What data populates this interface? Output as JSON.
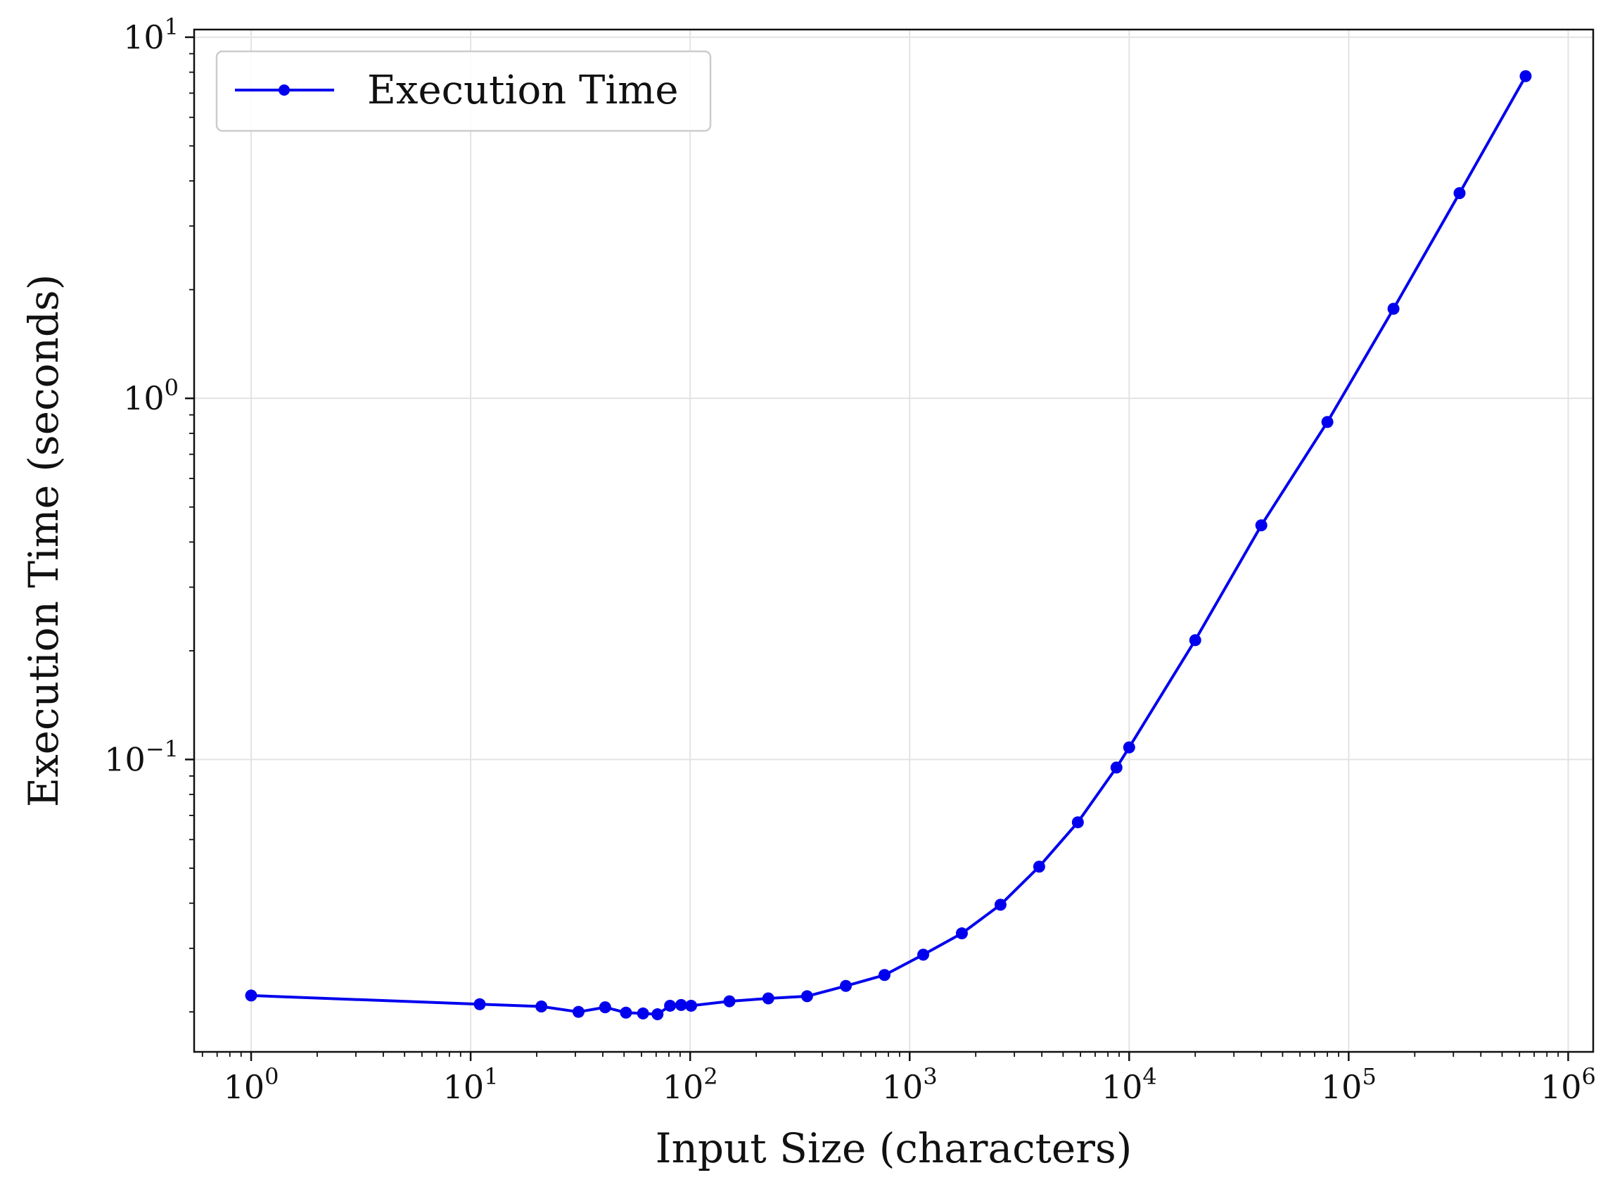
{
  "chart_data": {
    "type": "line",
    "xscale": "log",
    "yscale": "log",
    "xlabel": "Input Size (characters)",
    "ylabel": "Execution Time (seconds)",
    "xlim": [
      0.55,
      1300000
    ],
    "ylim": [
      0.0155,
      10.5
    ],
    "grid": true,
    "legend_position": "top-left",
    "x_ticks": [
      {
        "base": "10",
        "exp": "0",
        "value": 1
      },
      {
        "base": "10",
        "exp": "1",
        "value": 10
      },
      {
        "base": "10",
        "exp": "2",
        "value": 100
      },
      {
        "base": "10",
        "exp": "3",
        "value": 1000
      },
      {
        "base": "10",
        "exp": "4",
        "value": 10000
      },
      {
        "base": "10",
        "exp": "5",
        "value": 100000
      },
      {
        "base": "10",
        "exp": "6",
        "value": 1000000
      }
    ],
    "y_ticks": [
      {
        "base": "10",
        "exp": "−1",
        "value": 0.1
      },
      {
        "base": "10",
        "exp": "0",
        "value": 1
      },
      {
        "base": "10",
        "exp": "1",
        "value": 10
      }
    ],
    "series": [
      {
        "name": "Execution Time",
        "color": "#0000ee",
        "marker": "circle",
        "x": [
          1,
          11,
          21,
          31,
          41,
          51,
          61,
          71,
          81,
          91,
          101,
          151,
          227,
          341,
          512,
          768,
          1153,
          1729,
          2594,
          3891,
          5837,
          8756,
          10000,
          20000,
          40000,
          80000,
          160000,
          320000,
          640000
        ],
        "y": [
          0.0222,
          0.021,
          0.0207,
          0.02,
          0.0206,
          0.0199,
          0.0198,
          0.0197,
          0.0208,
          0.0209,
          0.0208,
          0.0214,
          0.0218,
          0.0221,
          0.0236,
          0.0253,
          0.0288,
          0.033,
          0.0396,
          0.0505,
          0.067,
          0.095,
          0.108,
          0.214,
          0.445,
          0.86,
          1.77,
          3.7,
          7.8
        ]
      }
    ]
  }
}
